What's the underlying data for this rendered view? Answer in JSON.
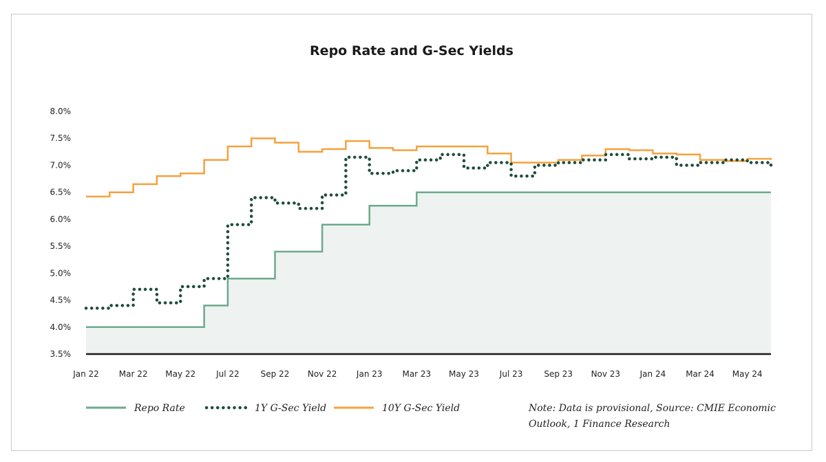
{
  "chart_data": {
    "type": "line",
    "title": "Repo Rate and G-Sec Yields",
    "xlabel": "",
    "ylabel": "",
    "x": [
      "Jan 22",
      "Feb 22",
      "Mar 22",
      "Apr 22",
      "May 22",
      "Jun 22",
      "Jul 22",
      "Aug 22",
      "Sep 22",
      "Oct 22",
      "Nov 22",
      "Dec 22",
      "Jan 23",
      "Feb 23",
      "Mar 23",
      "Apr 23",
      "May 23",
      "Jun 23",
      "Jul 23",
      "Aug 23",
      "Sep 23",
      "Oct 23",
      "Nov 23",
      "Dec 23",
      "Jan 24",
      "Feb 24",
      "Mar 24",
      "Apr 24",
      "May 24",
      "Jun 24"
    ],
    "x_ticks": [
      "Jan 22",
      "Mar 22",
      "May 22",
      "Jul 22",
      "Sep 22",
      "Nov 22",
      "Jan 23",
      "Mar 23",
      "May 23",
      "Jul 23",
      "Sep 23",
      "Nov 23",
      "Jan 24",
      "Mar 24",
      "May 24"
    ],
    "y_ticks": [
      "3.5%",
      "4.0%",
      "4.5%",
      "5.0%",
      "5.5%",
      "6.0%",
      "6.5%",
      "7.0%",
      "7.5%",
      "8.0%"
    ],
    "ylim": [
      3.5,
      8.0
    ],
    "grid": false,
    "legend_placement": "bottom",
    "series": [
      {
        "name": "Repo Rate",
        "style": "area-line",
        "color": "#6aaa8c",
        "values": [
          4.0,
          4.0,
          4.0,
          4.0,
          4.0,
          4.4,
          4.9,
          4.9,
          5.4,
          5.4,
          5.9,
          5.9,
          6.25,
          6.25,
          6.5,
          6.5,
          6.5,
          6.5,
          6.5,
          6.5,
          6.5,
          6.5,
          6.5,
          6.5,
          6.5,
          6.5,
          6.5,
          6.5,
          6.5,
          6.5
        ]
      },
      {
        "name": "1Y G-Sec Yield",
        "style": "dotted",
        "color": "#1e4d3a",
        "values": [
          4.35,
          4.4,
          4.7,
          4.45,
          4.75,
          4.9,
          5.9,
          6.4,
          6.3,
          6.2,
          6.45,
          7.15,
          6.85,
          6.9,
          7.1,
          7.2,
          6.95,
          7.05,
          6.8,
          7.0,
          7.05,
          7.1,
          7.2,
          7.12,
          7.15,
          7.0,
          7.05,
          7.1,
          7.05,
          7.0
        ]
      },
      {
        "name": "10Y G-Sec Yield",
        "style": "solid",
        "color": "#f5a13c",
        "values": [
          6.42,
          6.5,
          6.65,
          6.8,
          6.85,
          7.1,
          7.35,
          7.5,
          7.42,
          7.25,
          7.3,
          7.45,
          7.32,
          7.28,
          7.35,
          7.35,
          7.35,
          7.22,
          7.05,
          7.05,
          7.1,
          7.18,
          7.3,
          7.28,
          7.22,
          7.2,
          7.1,
          7.08,
          7.12,
          7.1
        ]
      }
    ],
    "note": "Note: Data is provisional, Source: CMIE Economic Outlook, 1 Finance Research",
    "note_lines": [
      "Note: Data is provisional, Source: CMIE Economic",
      "Outlook, 1 Finance Research"
    ],
    "colors": {
      "area_fill": "#eef2f0",
      "axis": "#1a1a1a"
    }
  }
}
